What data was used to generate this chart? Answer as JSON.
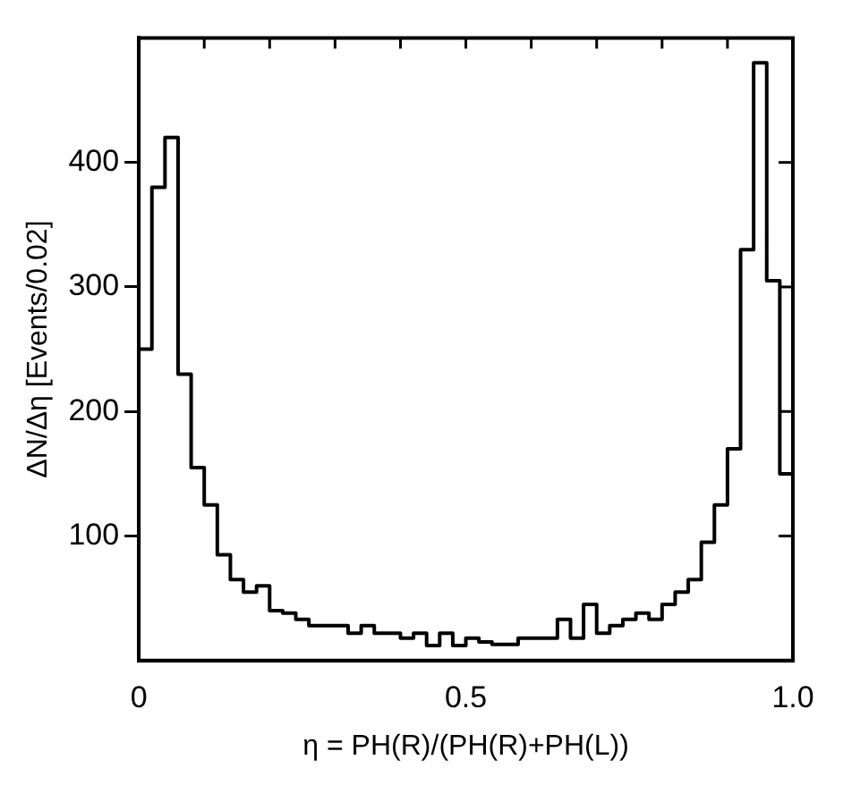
{
  "chart_data": {
    "type": "histogram",
    "xlabel": "η = PH(R)/(PH(R)+PH(L))",
    "ylabel": "ΔN/Δη [Events/0.02]",
    "bins": [
      0,
      0.02,
      0.04,
      0.06,
      0.08,
      0.1,
      0.12,
      0.14,
      0.16,
      0.18,
      0.2,
      0.22,
      0.24,
      0.26,
      0.28,
      0.3,
      0.32,
      0.34,
      0.36,
      0.38,
      0.4,
      0.42,
      0.44,
      0.46,
      0.48,
      0.5,
      0.52,
      0.54,
      0.56,
      0.58,
      0.6,
      0.62,
      0.64,
      0.66,
      0.68,
      0.7,
      0.72,
      0.74,
      0.76,
      0.78,
      0.8,
      0.82,
      0.84,
      0.86,
      0.88,
      0.9,
      0.92,
      0.94,
      0.96,
      0.98,
      1.0
    ],
    "values": [
      250,
      380,
      420,
      230,
      155,
      125,
      85,
      65,
      55,
      60,
      40,
      38,
      33,
      28,
      28,
      28,
      22,
      28,
      22,
      22,
      18,
      22,
      12,
      22,
      12,
      18,
      15,
      13,
      13,
      18,
      18,
      18,
      33,
      18,
      45,
      22,
      28,
      33,
      38,
      33,
      45,
      55,
      65,
      95,
      125,
      170,
      330,
      480,
      305,
      150
    ],
    "color": "#000000",
    "xlim": [
      0,
      1.0
    ],
    "xticks": [
      {
        "value": 0,
        "label": "0"
      },
      {
        "value": 0.1,
        "label": null
      },
      {
        "value": 0.2,
        "label": null
      },
      {
        "value": 0.3,
        "label": null
      },
      {
        "value": 0.4,
        "label": null
      },
      {
        "value": 0.5,
        "label": "0.5"
      },
      {
        "value": 0.6,
        "label": null
      },
      {
        "value": 0.7,
        "label": null
      },
      {
        "value": 0.8,
        "label": null
      },
      {
        "value": 0.9,
        "label": null
      },
      {
        "value": 1.0,
        "label": "1.0"
      }
    ],
    "ylim": [
      0,
      500
    ],
    "yticks": [
      100,
      200,
      300,
      400
    ],
    "grid": false,
    "legend": false
  }
}
